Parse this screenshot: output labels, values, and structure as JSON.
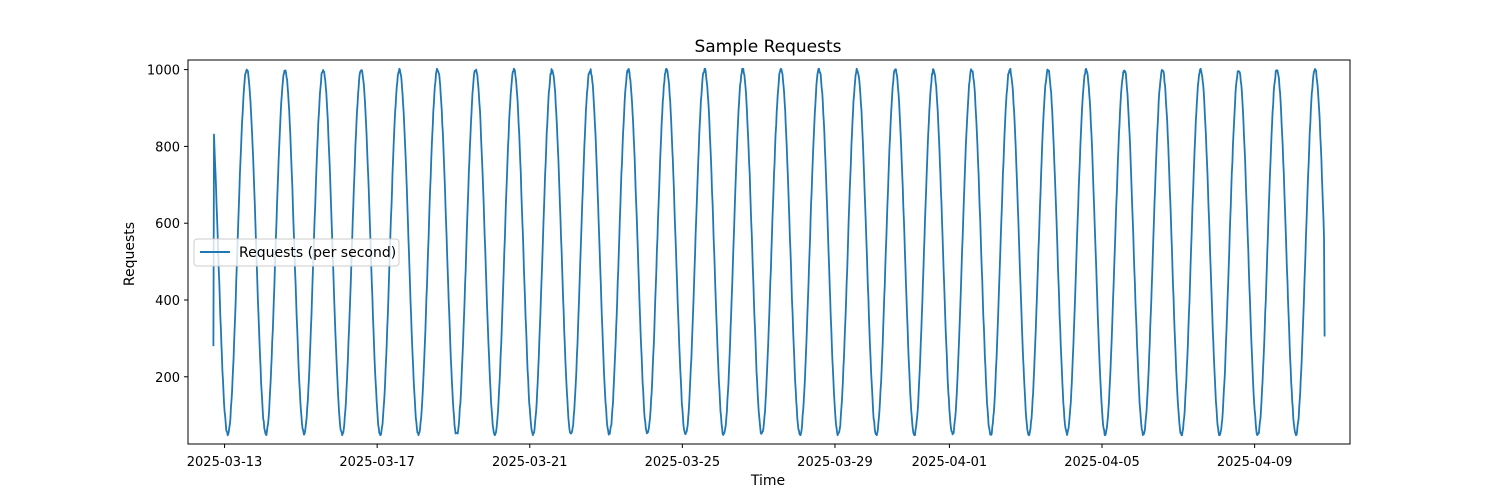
{
  "chart_data": {
    "type": "line",
    "title": "Sample Requests",
    "xlabel": "Time",
    "ylabel": "Requests",
    "x_range": [
      "2025-03-12T17:00",
      "2025-04-10T20:00"
    ],
    "xlim": [
      "2025-03-12T01:00",
      "2025-04-11T12:00"
    ],
    "ylim": [
      25,
      1025
    ],
    "y_ticks": [
      200,
      400,
      600,
      800,
      1000
    ],
    "x_ticks": [
      {
        "date": "2025-03-13",
        "label": "2025-03-13"
      },
      {
        "date": "2025-03-17",
        "label": "2025-03-17"
      },
      {
        "date": "2025-03-21",
        "label": "2025-03-21"
      },
      {
        "date": "2025-03-25",
        "label": "2025-03-25"
      },
      {
        "date": "2025-03-29",
        "label": "2025-03-29"
      },
      {
        "date": "2025-04-01",
        "label": "2025-04-01"
      },
      {
        "date": "2025-04-05",
        "label": "2025-04-05"
      },
      {
        "date": "2025-04-09",
        "label": "2025-04-09"
      }
    ],
    "series": [
      {
        "name": "Requests (per second)",
        "color": "#1f77b4",
        "pattern": "daily sinusoidal cycle",
        "min": 50,
        "max": 1000,
        "start_value": 280,
        "end_value": 305,
        "peak_dates": [
          "2025-03-13",
          "2025-03-14",
          "2025-03-15",
          "2025-03-16",
          "2025-03-17",
          "2025-03-18",
          "2025-03-19",
          "2025-03-20",
          "2025-03-21",
          "2025-03-22",
          "2025-03-23",
          "2025-03-24",
          "2025-03-25",
          "2025-03-26",
          "2025-03-27",
          "2025-03-28",
          "2025-03-29",
          "2025-03-30",
          "2025-03-31",
          "2025-04-01",
          "2025-04-02",
          "2025-04-03",
          "2025-04-04",
          "2025-04-05",
          "2025-04-06",
          "2025-04-07",
          "2025-04-08",
          "2025-04-09",
          "2025-04-10"
        ]
      }
    ],
    "grid": false,
    "legend_position": "center-left"
  }
}
